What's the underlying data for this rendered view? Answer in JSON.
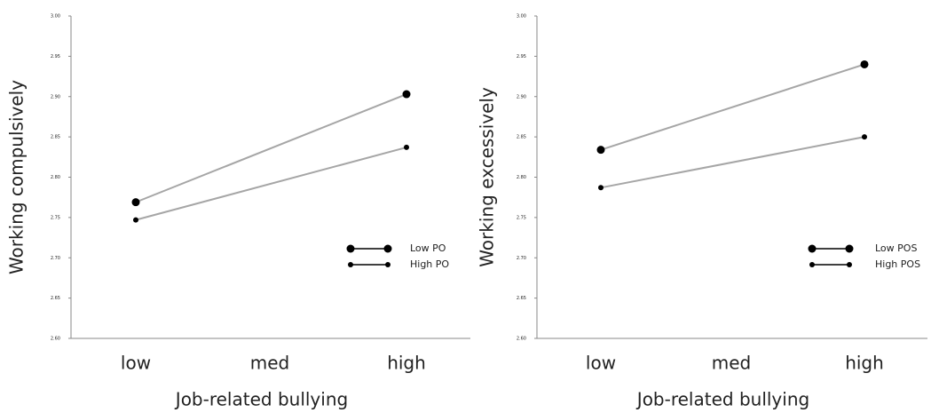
{
  "chart_data": [
    {
      "type": "line",
      "y_label": "Working compulsively",
      "x_label": "Job-related bullying",
      "categories": [
        "low",
        "med",
        "high"
      ],
      "ylim": [
        2.6,
        3.0
      ],
      "yticks": [
        {
          "value": 2.6,
          "label": "2.60"
        },
        {
          "value": 2.65,
          "label": "2.65"
        },
        {
          "value": 2.7,
          "label": "2.70"
        },
        {
          "value": 2.75,
          "label": "2.75"
        },
        {
          "value": 2.8,
          "label": "2.80"
        },
        {
          "value": 2.85,
          "label": "2.85"
        },
        {
          "value": 2.9,
          "label": "2.90"
        },
        {
          "value": 2.95,
          "label": "2.95"
        },
        {
          "value": 3.0,
          "label": "3.00"
        }
      ],
      "line_color": "#a6a6a6",
      "series": [
        {
          "name": "Low PO",
          "color": "#000000",
          "marker_size": 4.5,
          "values": [
            2.769,
            null,
            2.903
          ]
        },
        {
          "name": "High PO",
          "color": "#000000",
          "marker_size": 3,
          "values": [
            2.747,
            null,
            2.837
          ]
        }
      ]
    },
    {
      "type": "line",
      "y_label": "Working excessively",
      "x_label": "Job-related bullying",
      "categories": [
        "low",
        "med",
        "high"
      ],
      "ylim": [
        2.6,
        3.0
      ],
      "yticks": [
        {
          "value": 2.6,
          "label": "2.60"
        },
        {
          "value": 2.65,
          "label": "2.65"
        },
        {
          "value": 2.7,
          "label": "2.70"
        },
        {
          "value": 2.75,
          "label": "2.75"
        },
        {
          "value": 2.8,
          "label": "2.80"
        },
        {
          "value": 2.85,
          "label": "2.85"
        },
        {
          "value": 2.9,
          "label": "2.90"
        },
        {
          "value": 2.95,
          "label": "2.95"
        },
        {
          "value": 3.0,
          "label": "3.00"
        }
      ],
      "line_color": "#a6a6a6",
      "series": [
        {
          "name": "Low POS",
          "color": "#000000",
          "marker_size": 4.5,
          "values": [
            2.834,
            null,
            2.94
          ]
        },
        {
          "name": "High POS",
          "color": "#000000",
          "marker_size": 3,
          "values": [
            2.787,
            null,
            2.85
          ]
        }
      ]
    }
  ]
}
